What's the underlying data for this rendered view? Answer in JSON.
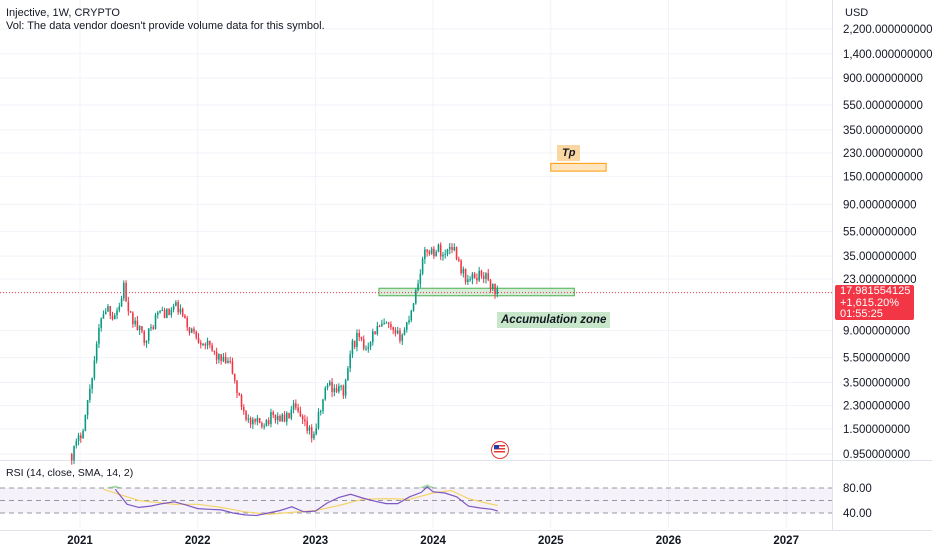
{
  "header": {
    "symbol_line": "Injective, 1W, CRYPTO",
    "volume_note": "Vol: The data vendor doesn't provide volume data for this symbol."
  },
  "currency": "USD",
  "price_tag": {
    "price": "17.981554125",
    "change": "+1,615.20%",
    "countdown": "01:55:25",
    "color": "#f23645"
  },
  "annotations": {
    "tp_label": "Tp",
    "accumulation_label": "Accumulation zone"
  },
  "rsi_panel": {
    "legend": "RSI (14, close, SMA, 14, 2)",
    "levels": [
      "80.00",
      "40.00"
    ]
  },
  "chart_data": {
    "type": "candlestick",
    "symbol": "Injective",
    "interval": "1W",
    "exchange": "CRYPTO",
    "yscale": "log",
    "y_ticks": [
      2200,
      1400,
      900,
      550,
      350,
      230,
      150,
      90,
      55,
      35,
      23,
      9,
      5.5,
      3.5,
      2.3,
      1.5,
      0.95
    ],
    "y_tick_labels": [
      "2,200.000000000",
      "1,400.000000000",
      "900.000000000",
      "550.000000000",
      "350.000000000",
      "230.000000000",
      "150.000000000",
      "90.000000000",
      "55.000000000",
      "35.000000000",
      "23.000000000",
      "9.000000000",
      "5.500000000",
      "3.500000000",
      "2.300000000",
      "1.500000000",
      "0.950000000"
    ],
    "x_ticks": [
      "2021",
      "2022",
      "2023",
      "2024",
      "2025",
      "2026",
      "2027"
    ],
    "last_price": 17.981554125,
    "price_path_weekly": [
      [
        2020.93,
        0.95
      ],
      [
        2021.0,
        1.3
      ],
      [
        2021.05,
        2.0
      ],
      [
        2021.1,
        4.0
      ],
      [
        2021.14,
        6.5
      ],
      [
        2021.18,
        12
      ],
      [
        2021.23,
        14
      ],
      [
        2021.28,
        12
      ],
      [
        2021.35,
        15
      ],
      [
        2021.37,
        24
      ],
      [
        2021.4,
        12
      ],
      [
        2021.45,
        11
      ],
      [
        2021.5,
        9
      ],
      [
        2021.55,
        8
      ],
      [
        2021.6,
        9
      ],
      [
        2021.65,
        12
      ],
      [
        2021.7,
        13
      ],
      [
        2021.75,
        12
      ],
      [
        2021.8,
        14
      ],
      [
        2021.85,
        13
      ],
      [
        2021.9,
        10
      ],
      [
        2021.95,
        9
      ],
      [
        2022.0,
        8
      ],
      [
        2022.05,
        7.5
      ],
      [
        2022.1,
        6.5
      ],
      [
        2022.2,
        5.2
      ],
      [
        2022.28,
        4.8
      ],
      [
        2022.35,
        2.6
      ],
      [
        2022.45,
        1.6
      ],
      [
        2022.55,
        1.7
      ],
      [
        2022.65,
        1.9
      ],
      [
        2022.75,
        1.8
      ],
      [
        2022.82,
        2.2
      ],
      [
        2022.9,
        1.6
      ],
      [
        2022.98,
        1.3
      ],
      [
        2023.05,
        2.2
      ],
      [
        2023.1,
        3.5
      ],
      [
        2023.15,
        3.2
      ],
      [
        2023.25,
        3.0
      ],
      [
        2023.3,
        6.5
      ],
      [
        2023.35,
        8.0
      ],
      [
        2023.42,
        6.5
      ],
      [
        2023.5,
        9
      ],
      [
        2023.6,
        10
      ],
      [
        2023.68,
        8.0
      ],
      [
        2023.75,
        8.6
      ],
      [
        2023.8,
        12
      ],
      [
        2023.85,
        18
      ],
      [
        2023.9,
        30
      ],
      [
        2023.95,
        40
      ],
      [
        2024.0,
        38
      ],
      [
        2024.05,
        40
      ],
      [
        2024.1,
        35
      ],
      [
        2024.15,
        45
      ],
      [
        2024.2,
        36
      ],
      [
        2024.25,
        26
      ],
      [
        2024.3,
        22
      ],
      [
        2024.35,
        24
      ],
      [
        2024.42,
        26
      ],
      [
        2024.5,
        20
      ],
      [
        2024.55,
        18.0
      ]
    ],
    "zones": [
      {
        "name": "Accumulation zone",
        "x_start": 2023.54,
        "x_end": 2025.2,
        "y_low": 17.0,
        "y_high": 19.5,
        "color": "#c8e6c9"
      },
      {
        "name": "Tp",
        "x_start": 2025.0,
        "x_end": 2025.47,
        "y_low": 165,
        "y_high": 190,
        "color": "#fad7a0"
      }
    ],
    "rsi": {
      "params": "RSI (14, close, SMA, 14, 2)",
      "levels": [
        80,
        40
      ],
      "rsi_path": [
        [
          2021.3,
          78
        ],
        [
          2021.4,
          54
        ],
        [
          2021.5,
          49
        ],
        [
          2021.6,
          51
        ],
        [
          2021.7,
          55
        ],
        [
          2021.8,
          58
        ],
        [
          2021.9,
          53
        ],
        [
          2022.0,
          47
        ],
        [
          2022.1,
          46
        ],
        [
          2022.2,
          45
        ],
        [
          2022.3,
          40
        ],
        [
          2022.4,
          37
        ],
        [
          2022.5,
          36
        ],
        [
          2022.6,
          40
        ],
        [
          2022.7,
          44
        ],
        [
          2022.8,
          50
        ],
        [
          2022.9,
          42
        ],
        [
          2023.0,
          43
        ],
        [
          2023.1,
          56
        ],
        [
          2023.2,
          65
        ],
        [
          2023.3,
          70
        ],
        [
          2023.4,
          64
        ],
        [
          2023.5,
          59
        ],
        [
          2023.6,
          55
        ],
        [
          2023.7,
          55
        ],
        [
          2023.8,
          66
        ],
        [
          2023.9,
          73
        ],
        [
          2023.95,
          82
        ],
        [
          2024.0,
          74
        ],
        [
          2024.1,
          72
        ],
        [
          2024.2,
          66
        ],
        [
          2024.3,
          51
        ],
        [
          2024.4,
          48
        ],
        [
          2024.5,
          46
        ],
        [
          2024.55,
          43
        ]
      ],
      "sma_path": [
        [
          2021.2,
          78
        ],
        [
          2021.5,
          60
        ],
        [
          2021.8,
          54
        ],
        [
          2022.0,
          54
        ],
        [
          2022.2,
          49
        ],
        [
          2022.4,
          42
        ],
        [
          2022.6,
          38
        ],
        [
          2022.8,
          41
        ],
        [
          2023.0,
          44
        ],
        [
          2023.2,
          52
        ],
        [
          2023.4,
          62
        ],
        [
          2023.6,
          63
        ],
        [
          2023.8,
          62
        ],
        [
          2024.0,
          72
        ],
        [
          2024.15,
          76
        ],
        [
          2024.3,
          63
        ],
        [
          2024.45,
          56
        ],
        [
          2024.55,
          52
        ]
      ]
    }
  }
}
